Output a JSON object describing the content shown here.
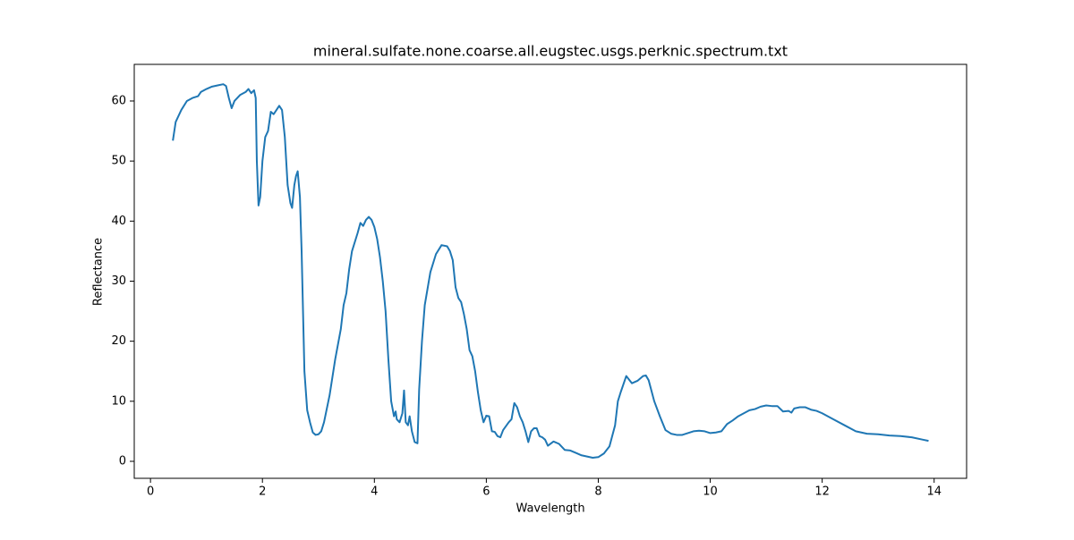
{
  "chart_data": {
    "type": "line",
    "title": "mineral.sulfate.none.coarse.all.eugstec.usgs.perknic.spectrum.txt",
    "x_label": "Wavelength",
    "y_label": "Reflectance",
    "xlim": [
      -0.29,
      14.58
    ],
    "ylim": [
      -2.83,
      66.1
    ],
    "xticks": [
      0,
      2,
      4,
      6,
      8,
      10,
      12,
      14
    ],
    "yticks": [
      0,
      10,
      20,
      30,
      40,
      50,
      60
    ],
    "series": [
      {
        "color": "#1f77b4",
        "x": [
          0.4,
          0.45,
          0.55,
          0.65,
          0.75,
          0.85,
          0.9,
          1.0,
          1.1,
          1.2,
          1.3,
          1.35,
          1.4,
          1.45,
          1.5,
          1.6,
          1.7,
          1.75,
          1.8,
          1.85,
          1.88,
          1.9,
          1.93,
          1.96,
          2.0,
          2.05,
          2.1,
          2.15,
          2.2,
          2.25,
          2.3,
          2.35,
          2.4,
          2.45,
          2.5,
          2.53,
          2.57,
          2.6,
          2.63,
          2.67,
          2.7,
          2.75,
          2.8,
          2.85,
          2.9,
          2.95,
          3.0,
          3.05,
          3.1,
          3.2,
          3.3,
          3.4,
          3.45,
          3.5,
          3.55,
          3.6,
          3.7,
          3.75,
          3.8,
          3.85,
          3.9,
          3.95,
          4.0,
          4.05,
          4.1,
          4.15,
          4.2,
          4.25,
          4.3,
          4.35,
          4.38,
          4.4,
          4.45,
          4.5,
          4.53,
          4.56,
          4.6,
          4.63,
          4.67,
          4.72,
          4.77,
          4.8,
          4.85,
          4.9,
          5.0,
          5.1,
          5.2,
          5.3,
          5.35,
          5.4,
          5.45,
          5.5,
          5.55,
          5.6,
          5.65,
          5.7,
          5.75,
          5.8,
          5.85,
          5.9,
          5.95,
          6.0,
          6.05,
          6.1,
          6.15,
          6.2,
          6.25,
          6.3,
          6.4,
          6.45,
          6.5,
          6.55,
          6.6,
          6.65,
          6.7,
          6.75,
          6.8,
          6.85,
          6.9,
          6.95,
          7.0,
          7.05,
          7.1,
          7.2,
          7.3,
          7.4,
          7.5,
          7.6,
          7.7,
          7.8,
          7.9,
          8.0,
          8.1,
          8.2,
          8.3,
          8.35,
          8.4,
          8.5,
          8.6,
          8.7,
          8.8,
          8.85,
          8.9,
          9.0,
          9.1,
          9.2,
          9.3,
          9.4,
          9.5,
          9.6,
          9.7,
          9.8,
          9.9,
          10.0,
          10.1,
          10.2,
          10.3,
          10.4,
          10.5,
          10.6,
          10.7,
          10.8,
          10.9,
          11.0,
          11.1,
          11.2,
          11.3,
          11.4,
          11.45,
          11.5,
          11.6,
          11.7,
          11.8,
          11.9,
          12.0,
          12.2,
          12.4,
          12.6,
          12.8,
          13.0,
          13.2,
          13.4,
          13.6,
          13.8,
          13.9
        ],
        "values": [
          53.4,
          56.5,
          58.5,
          60.0,
          60.5,
          60.8,
          61.5,
          62.0,
          62.4,
          62.6,
          62.8,
          62.5,
          60.5,
          58.8,
          60.0,
          61.0,
          61.5,
          62.0,
          61.3,
          61.8,
          60.5,
          50,
          42.6,
          44,
          50,
          54,
          55,
          58.2,
          57.8,
          58.5,
          59.2,
          58.5,
          54,
          46,
          43,
          42.2,
          46,
          47.5,
          48.3,
          44,
          35,
          15,
          8.5,
          6.5,
          4.8,
          4.4,
          4.5,
          5,
          6.5,
          11,
          17,
          22,
          26,
          28,
          32,
          35,
          38,
          39.7,
          39.2,
          40.2,
          40.7,
          40.2,
          39,
          37,
          34,
          30,
          25,
          17,
          10,
          7.5,
          8.3,
          7,
          6.5,
          8,
          11.8,
          6.5,
          6,
          7.5,
          5,
          3.2,
          3.0,
          12,
          20,
          26,
          31.5,
          34.5,
          36,
          35.8,
          35,
          33.5,
          29,
          27.2,
          26.5,
          24.5,
          22,
          18.5,
          17.5,
          15,
          11.5,
          8.5,
          6.5,
          7.6,
          7.5,
          5,
          4.9,
          4.2,
          4.0,
          5.2,
          6.5,
          7,
          9.7,
          9,
          7.5,
          6.5,
          5,
          3.2,
          5,
          5.5,
          5.5,
          4.2,
          4.0,
          3.6,
          2.6,
          3.3,
          2.9,
          1.9,
          1.8,
          1.4,
          1.0,
          0.8,
          0.6,
          0.7,
          1.3,
          2.5,
          6,
          10,
          11.5,
          14.2,
          13,
          13.4,
          14.2,
          14.3,
          13.5,
          10,
          7.5,
          5.2,
          4.6,
          4.4,
          4.4,
          4.7,
          5.0,
          5.1,
          5.0,
          4.7,
          4.8,
          5.0,
          6.2,
          6.8,
          7.5,
          8.0,
          8.5,
          8.7,
          9.1,
          9.3,
          9.2,
          9.2,
          8.3,
          8.4,
          8.1,
          8.8,
          9.0,
          9.0,
          8.6,
          8.4,
          8.0,
          7.0,
          6.0,
          5.0,
          4.6,
          4.5,
          4.3,
          4.2,
          4.0,
          3.6,
          3.4
        ]
      }
    ]
  }
}
